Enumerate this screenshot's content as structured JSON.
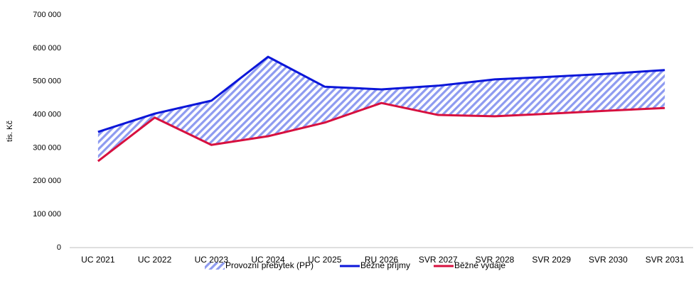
{
  "chart_data": {
    "type": "line",
    "ylabel": "tis. Kč",
    "categories": [
      "UC 2021",
      "UC 2022",
      "UC 2023",
      "UC 2024",
      "UC 2025",
      "RU 2026",
      "SVR 2027",
      "SVR 2028",
      "SVR 2029",
      "SVR 2030",
      "SVR 2031"
    ],
    "series": [
      {
        "name": "Provozní přebytek (PP)",
        "type": "area",
        "color": "#8e9bf0",
        "values": [
          88000,
          12000,
          133000,
          239000,
          108000,
          41000,
          88000,
          111000,
          111000,
          111000,
          114000
        ]
      },
      {
        "name": "Běžné příjmy",
        "type": "line",
        "color": "#0b16d9",
        "values": [
          348000,
          403000,
          442000,
          574000,
          484000,
          476000,
          487000,
          506000,
          514000,
          523000,
          534000
        ]
      },
      {
        "name": "Běžné výdaje",
        "type": "line",
        "color": "#d7103f",
        "values": [
          260000,
          391000,
          309000,
          335000,
          376000,
          435000,
          399000,
          395000,
          403000,
          412000,
          420000
        ]
      }
    ],
    "ylim": [
      0,
      700000
    ],
    "yticks": [
      0,
      {
        "value": 100000,
        "label": "100 000"
      },
      {
        "value": 200000,
        "label": "200 000"
      },
      {
        "value": 300000,
        "label": "300 000"
      },
      {
        "value": 400000,
        "label": "400 000"
      },
      {
        "value": 500000,
        "label": "500 000"
      },
      {
        "value": 600000,
        "label": "600 000"
      },
      {
        "value": 700000,
        "label": "700 000"
      }
    ],
    "legend": "bottom"
  }
}
